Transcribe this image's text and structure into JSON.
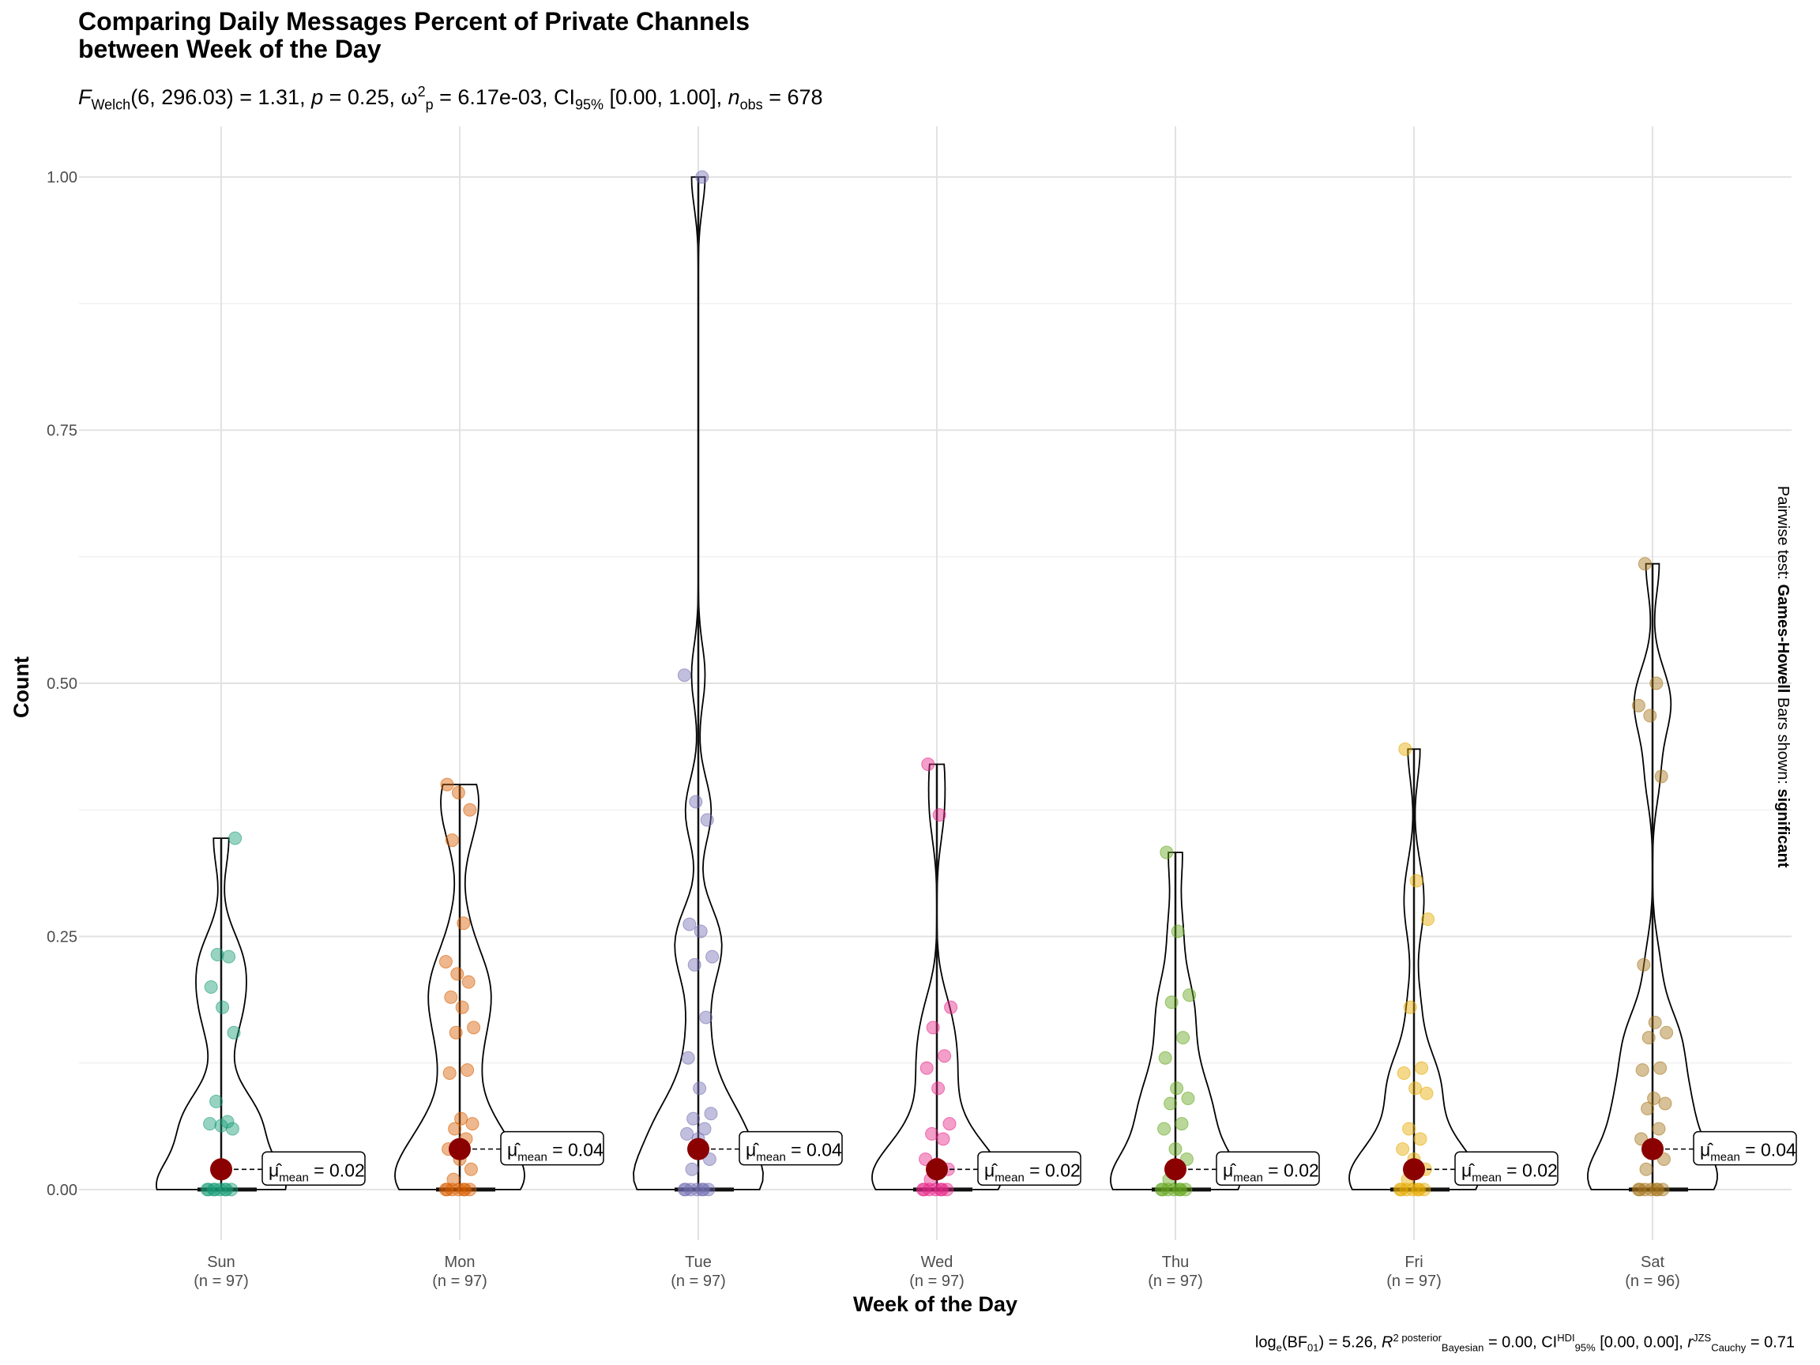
{
  "title_line1": "Comparing Daily Messages Percent of Private Channels",
  "title_line2": "between Week of the Day",
  "subtitle": {
    "F_sym": "F",
    "F_sub": "Welch",
    "df_text": "(6, 296.03) = 1.31, ",
    "p_sym": "p",
    "p_text": " = 0.25, ",
    "omega_sym": "ω",
    "omega_sub": "p",
    "omega_sup": "2",
    "omega_text": " = 6.17e-03, CI",
    "ci_sub": "95%",
    "ci_text": " [0.00, 1.00], ",
    "n_sym": "n",
    "n_sub": "obs",
    "n_text": " = 678"
  },
  "caption": {
    "log": "log",
    "log_sub": "e",
    "bf": "(BF",
    "bf_sub": "01",
    "bf_text": ") = 5.26, ",
    "r2_sym": "R",
    "r2_sup": "2",
    "r2_sup2": "posterior",
    "r2_sub": "Bayesian",
    "r2_text": " = 0.00, CI",
    "ci_sup": "HDI",
    "ci_sub": "95%",
    "ci_text": " [0.00, 0.00], ",
    "r_sym": "r",
    "r_sup": "JZS",
    "r_sub": "Cauchy",
    "r_text": " = 0.71"
  },
  "sidebar": {
    "prefix": "Pairwise test: ",
    "test": "Games-Howell",
    "middle": " Bars shown: ",
    "shown": "significant"
  },
  "chart_data": {
    "type": "violin",
    "xlabel": "Week of the Day",
    "ylabel": "Count",
    "ylim": [
      -0.05,
      1.05
    ],
    "yticks": [
      "0.00",
      "0.25",
      "0.50",
      "0.75",
      "1.00"
    ],
    "grid": true,
    "mean_color": "#8B0000",
    "groups": [
      {
        "name": "Sun",
        "n_label": "(n = 97)",
        "color": "#1B9E77",
        "mean": 0.02,
        "mean_label": "0.02",
        "points": [
          0,
          0,
          0,
          0,
          0,
          0,
          0,
          0,
          0.06,
          0.063,
          0.065,
          0.067,
          0.087,
          0.155,
          0.18,
          0.2,
          0.23,
          0.232,
          0.347
        ]
      },
      {
        "name": "Mon",
        "n_label": "(n = 97)",
        "color": "#D95F02",
        "mean": 0.04,
        "mean_label": "0.04",
        "points": [
          0,
          0,
          0,
          0,
          0,
          0,
          0,
          0.01,
          0.02,
          0.03,
          0.04,
          0.05,
          0.06,
          0.065,
          0.07,
          0.115,
          0.118,
          0.155,
          0.16,
          0.18,
          0.19,
          0.205,
          0.213,
          0.225,
          0.263,
          0.345,
          0.375,
          0.392,
          0.4
        ]
      },
      {
        "name": "Tue",
        "n_label": "(n = 97)",
        "color": "#7570B3",
        "mean": 0.04,
        "mean_label": "0.04",
        "points": [
          0,
          0,
          0,
          0,
          0,
          0,
          0,
          0.02,
          0.03,
          0.05,
          0.055,
          0.06,
          0.07,
          0.075,
          0.1,
          0.13,
          0.17,
          0.222,
          0.23,
          0.255,
          0.262,
          0.365,
          0.383,
          0.508,
          1.0
        ]
      },
      {
        "name": "Wed",
        "n_label": "(n = 97)",
        "color": "#E7298A",
        "mean": 0.02,
        "mean_label": "0.02",
        "points": [
          0,
          0,
          0,
          0,
          0,
          0,
          0,
          0.01,
          0.02,
          0.025,
          0.03,
          0.05,
          0.055,
          0.065,
          0.1,
          0.12,
          0.132,
          0.16,
          0.18,
          0.37,
          0.42
        ]
      },
      {
        "name": "Thu",
        "n_label": "(n = 97)",
        "color": "#66A61E",
        "mean": 0.02,
        "mean_label": "0.02",
        "points": [
          0,
          0,
          0,
          0,
          0,
          0,
          0,
          0.01,
          0.03,
          0.04,
          0.06,
          0.065,
          0.085,
          0.09,
          0.1,
          0.13,
          0.15,
          0.185,
          0.192,
          0.255,
          0.333
        ]
      },
      {
        "name": "Fri",
        "n_label": "(n = 97)",
        "color": "#E6AB02",
        "mean": 0.02,
        "mean_label": "0.02",
        "points": [
          0,
          0,
          0,
          0,
          0,
          0,
          0,
          0.01,
          0.02,
          0.03,
          0.04,
          0.05,
          0.06,
          0.095,
          0.1,
          0.115,
          0.12,
          0.18,
          0.267,
          0.305,
          0.435
        ]
      },
      {
        "name": "Sat",
        "n_label": "(n = 96)",
        "color": "#A6761D",
        "mean": 0.04,
        "mean_label": "0.04",
        "points": [
          0,
          0,
          0,
          0,
          0,
          0,
          0,
          0.02,
          0.03,
          0.04,
          0.05,
          0.06,
          0.08,
          0.085,
          0.09,
          0.118,
          0.12,
          0.15,
          0.155,
          0.165,
          0.222,
          0.408,
          0.468,
          0.478,
          0.5,
          0.618
        ]
      }
    ]
  }
}
